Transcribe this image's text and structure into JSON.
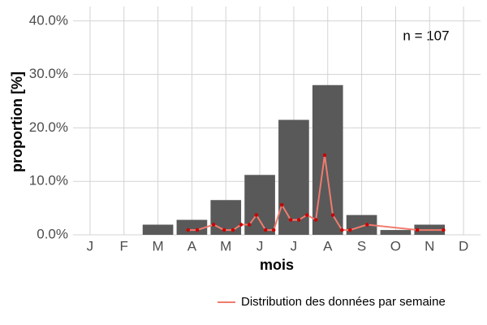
{
  "chart_data": {
    "type": "bar",
    "categories": [
      "J",
      "F",
      "M",
      "A",
      "M",
      "J",
      "J",
      "A",
      "S",
      "O",
      "N",
      "D"
    ],
    "values": [
      0,
      0,
      1.9,
      2.8,
      6.5,
      11.2,
      21.5,
      28.0,
      3.7,
      0.9,
      1.9,
      0
    ],
    "color": "#595959",
    "xlim": [
      0.5,
      12.5
    ],
    "ylim": [
      0,
      42.7
    ],
    "yticks": [
      {
        "value": 0,
        "label": "0.0%"
      },
      {
        "value": 10,
        "label": "10.0%"
      },
      {
        "value": 20,
        "label": "20.0%"
      },
      {
        "value": 30,
        "label": "30.0%"
      },
      {
        "value": 40,
        "label": "40.0%"
      }
    ],
    "grid": true,
    "xlabel": "mois",
    "ylabel": "proportion [%]",
    "annotation": "n = 107",
    "legend": "bottom-right",
    "line": {
      "name": "Distribution des données par semaine",
      "color": "#f07b6e",
      "point_color": "#cc0000",
      "x": [
        3.89,
        4.16,
        4.64,
        4.95,
        5.21,
        5.45,
        5.69,
        5.9,
        6.17,
        6.41,
        6.65,
        6.91,
        7.15,
        7.39,
        7.65,
        7.91,
        8.15,
        8.42,
        8.66,
        9.16,
        10.64,
        11.41
      ],
      "values": [
        0.9,
        0.9,
        1.9,
        0.9,
        0.9,
        1.9,
        1.9,
        3.7,
        0.9,
        0.9,
        5.6,
        2.8,
        2.8,
        3.7,
        2.8,
        14.9,
        3.7,
        0.9,
        0.9,
        1.9,
        0.9,
        0.9
      ]
    }
  }
}
